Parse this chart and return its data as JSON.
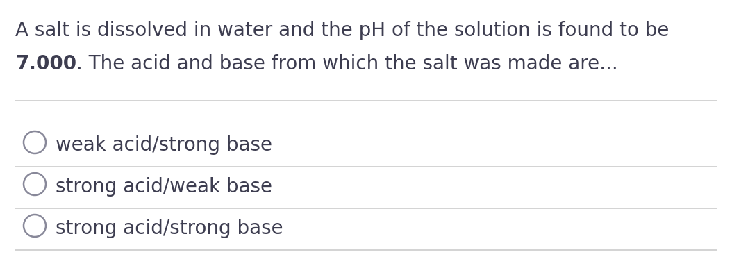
{
  "background_color": "#ffffff",
  "text_color": "#3d3d50",
  "line_color": "#cccccc",
  "question_line1": "A salt is dissolved in water and the pH of the solution is found to be",
  "question_line2_bold": "7.000",
  "question_line2_rest": ". The acid and base from which the salt was made are...",
  "options": [
    "weak acid/strong base",
    "strong acid/weak base",
    "strong acid/strong base"
  ],
  "circle_color": "#888899",
  "font_size_question": 20,
  "font_size_options": 20,
  "fig_width": 10.54,
  "fig_height": 3.96,
  "dpi": 100
}
